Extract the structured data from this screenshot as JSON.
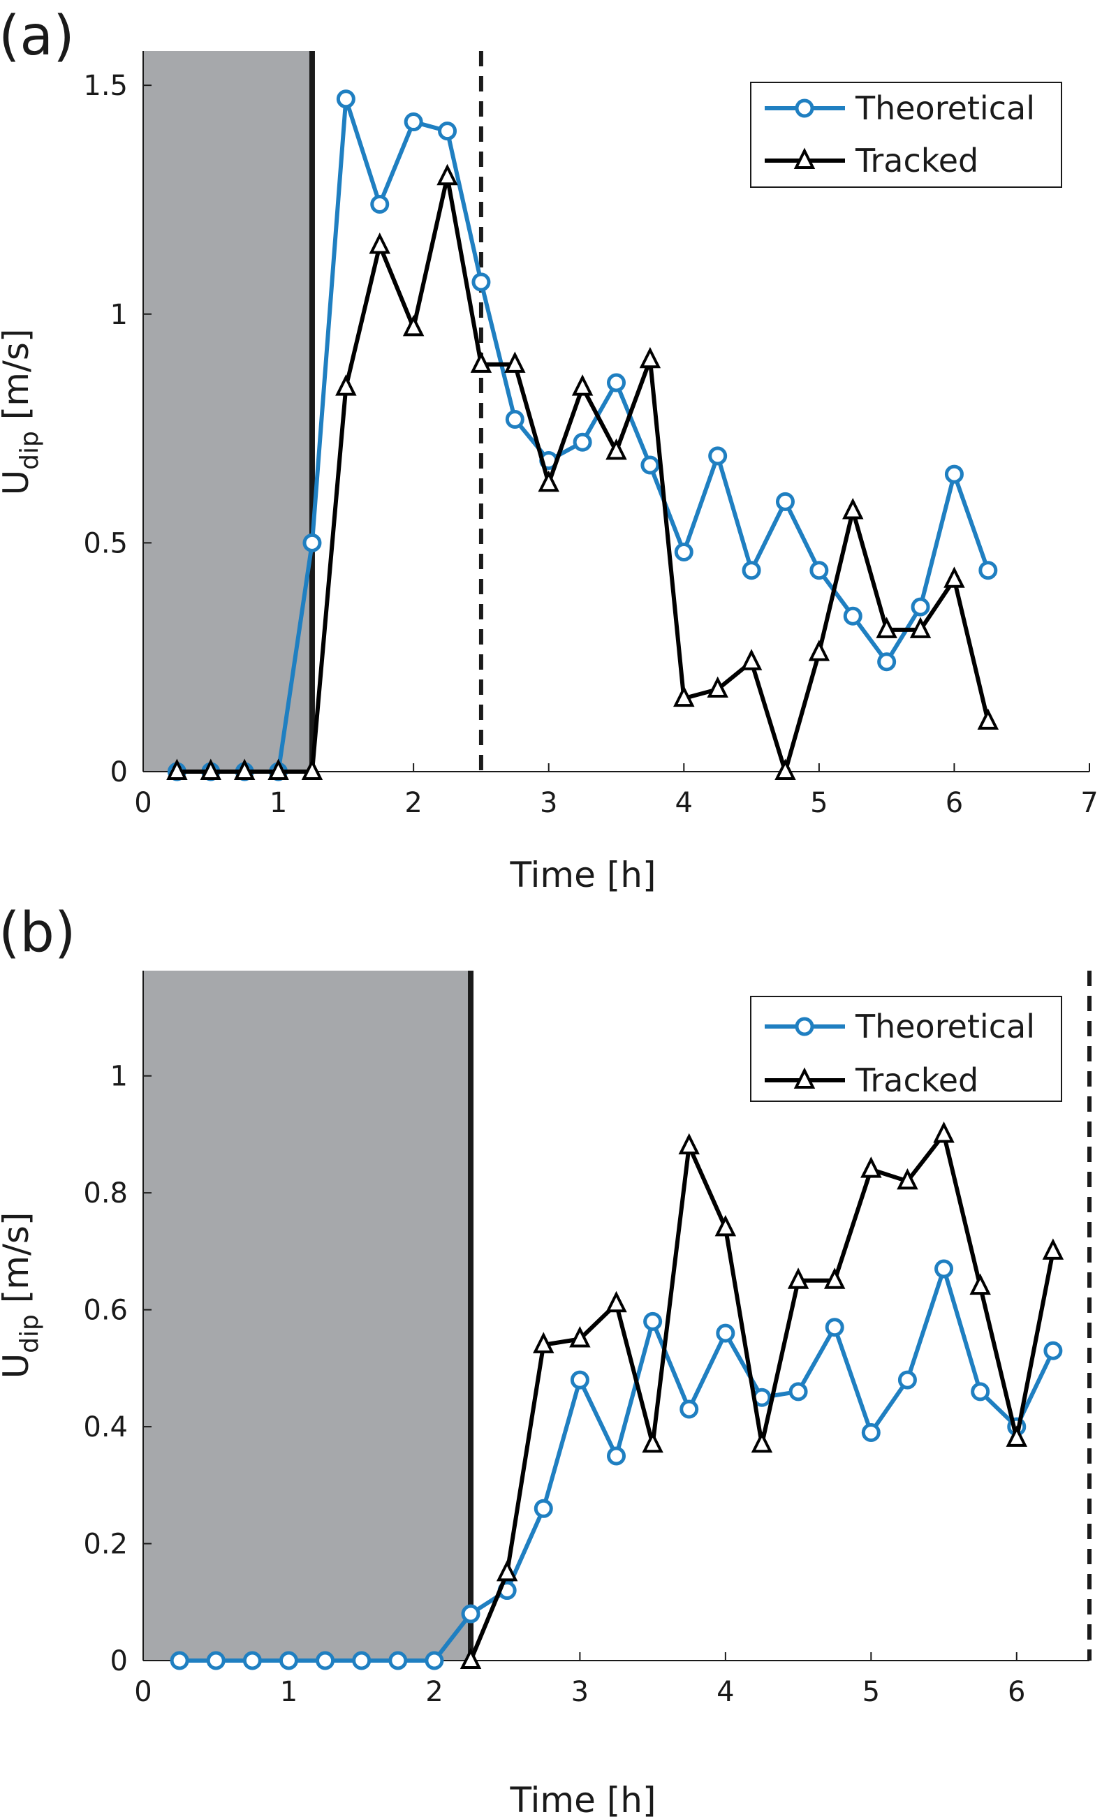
{
  "colors": {
    "theoretical": "#1f7fc1",
    "tracked": "#000000",
    "shade": "#a6a8ab",
    "axis": "#1a1a1a"
  },
  "chart_data": [
    {
      "panel": "(a)",
      "type": "line",
      "xlabel": "Time [h]",
      "ylabel": "U",
      "ylabel_sub": "dip",
      "ylabel_unit": " [m/s]",
      "xlim": [
        0,
        7
      ],
      "ylim": [
        0,
        1.575
      ],
      "xticks": [
        0,
        1,
        2,
        3,
        4,
        5,
        6,
        7
      ],
      "xtick_labels": [
        "0",
        "1",
        "2",
        "3",
        "4",
        "5",
        "6",
        "7"
      ],
      "yticks": [
        0,
        0.5,
        1,
        1.5
      ],
      "ytick_labels": [
        "0",
        "0.5",
        "1",
        "1.5"
      ],
      "shaded_region": [
        0,
        1.25
      ],
      "solid_vline": 1.25,
      "dashed_vline": 2.5,
      "legend": {
        "position": "top-right",
        "entries": [
          "Theoretical",
          "Tracked"
        ]
      },
      "series": [
        {
          "name": "Theoretical",
          "marker": "circle",
          "x": [
            0.25,
            0.5,
            0.75,
            1.0,
            1.25,
            1.5,
            1.75,
            2.0,
            2.25,
            2.5,
            2.75,
            3.0,
            3.25,
            3.5,
            3.75,
            4.0,
            4.25,
            4.5,
            4.75,
            5.0,
            5.25,
            5.5,
            5.75,
            6.0,
            6.25
          ],
          "values": [
            0,
            0,
            0,
            0,
            0.5,
            1.47,
            1.24,
            1.42,
            1.4,
            1.07,
            0.77,
            0.68,
            0.72,
            0.85,
            0.67,
            0.48,
            0.69,
            0.44,
            0.59,
            0.44,
            0.34,
            0.24,
            0.36,
            0.65,
            0.44
          ]
        },
        {
          "name": "Tracked",
          "marker": "triangle",
          "x": [
            0.25,
            0.5,
            0.75,
            1.0,
            1.25,
            1.5,
            1.75,
            2.0,
            2.25,
            2.5,
            2.75,
            3.0,
            3.25,
            3.5,
            3.75,
            4.0,
            4.25,
            4.5,
            4.75,
            5.0,
            5.25,
            5.5,
            5.75,
            6.0,
            6.25
          ],
          "values": [
            0,
            0,
            0,
            0,
            0,
            0.84,
            1.15,
            0.97,
            1.3,
            0.89,
            0.89,
            0.63,
            0.84,
            0.7,
            0.9,
            0.16,
            0.18,
            0.24,
            0,
            0.26,
            0.57,
            0.31,
            0.31,
            0.42,
            0.11
          ]
        }
      ]
    },
    {
      "panel": "(b)",
      "type": "line",
      "xlabel": "Time [h]",
      "ylabel": "U",
      "ylabel_sub": "dip",
      "ylabel_unit": " [m/s]",
      "xlim": [
        0,
        6.5
      ],
      "ylim": [
        0,
        1.18
      ],
      "xticks": [
        0,
        1,
        2,
        3,
        4,
        5,
        6
      ],
      "xtick_labels": [
        "0",
        "1",
        "2",
        "3",
        "4",
        "5",
        "6"
      ],
      "yticks": [
        0,
        0.2,
        0.4,
        0.6,
        0.8,
        1
      ],
      "ytick_labels": [
        "0",
        "0.2",
        "0.4",
        "0.6",
        "0.8",
        "1"
      ],
      "shaded_region": [
        0,
        2.25
      ],
      "solid_vline": 2.25,
      "dashed_vline": 6.5,
      "legend": {
        "position": "top-right",
        "entries": [
          "Theoretical",
          "Tracked"
        ]
      },
      "series": [
        {
          "name": "Theoretical",
          "marker": "circle",
          "x": [
            0.25,
            0.5,
            0.75,
            1.0,
            1.25,
            1.5,
            1.75,
            2.0,
            2.25,
            2.5,
            2.75,
            3.0,
            3.25,
            3.5,
            3.75,
            4.0,
            4.25,
            4.5,
            4.75,
            5.0,
            5.25,
            5.5,
            5.75,
            6.0,
            6.25
          ],
          "values": [
            0,
            0,
            0,
            0,
            0,
            0,
            0,
            0,
            0.08,
            0.12,
            0.26,
            0.48,
            0.35,
            0.58,
            0.43,
            0.56,
            0.45,
            0.46,
            0.57,
            0.39,
            0.48,
            0.67,
            0.46,
            0.4,
            0.53
          ]
        },
        {
          "name": "Tracked",
          "marker": "triangle",
          "x": [
            2.25,
            2.5,
            2.75,
            3.0,
            3.25,
            3.5,
            3.75,
            4.0,
            4.25,
            4.5,
            4.75,
            5.0,
            5.25,
            5.5,
            5.75,
            6.0,
            6.25
          ],
          "values": [
            0,
            0.15,
            0.54,
            0.55,
            0.61,
            0.37,
            0.88,
            0.74,
            0.37,
            0.65,
            0.65,
            0.84,
            0.82,
            0.9,
            0.64,
            0.38,
            0.7
          ]
        }
      ]
    }
  ]
}
